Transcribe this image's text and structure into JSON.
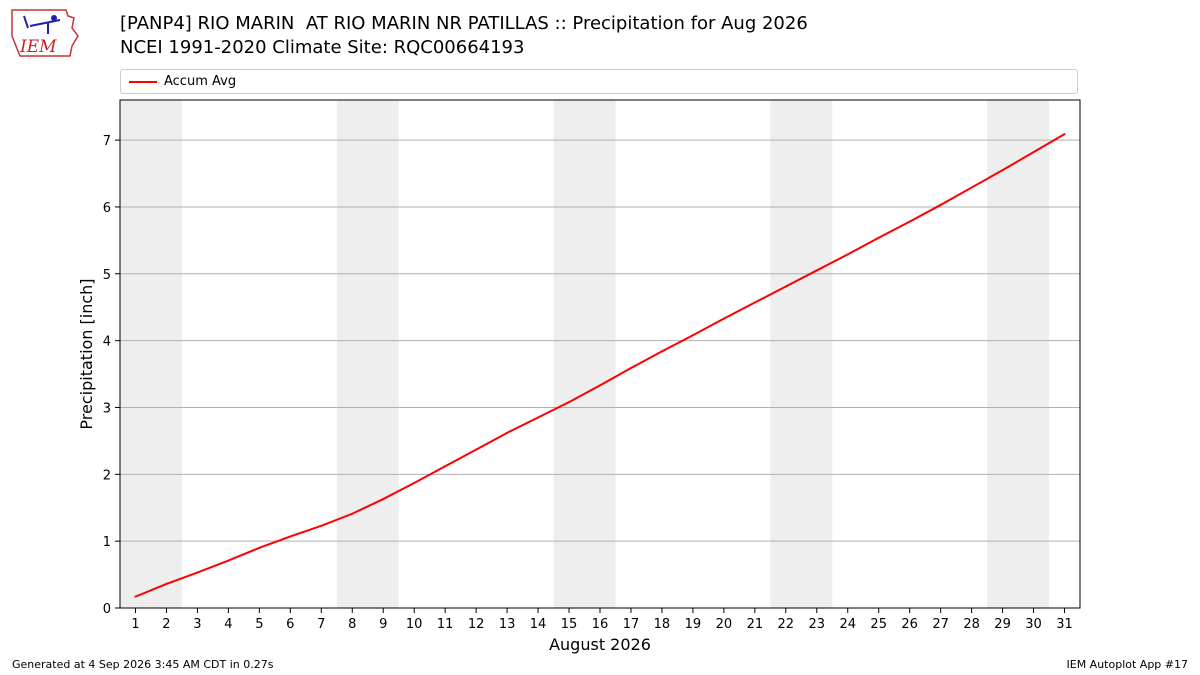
{
  "header": {
    "title_line1": "[PANP4] RIO MARIN  AT RIO MARIN NR PATILLAS :: Precipitation for Aug 2026",
    "title_line2": "NCEI 1991-2020 Climate Site: RQC00664193"
  },
  "logo": {
    "text": "IEM"
  },
  "footer": {
    "generated": "Generated at 4 Sep 2026 3:45 AM CDT in 0.27s",
    "app": "IEM Autoplot App #17"
  },
  "colors": {
    "series": "#ff0000",
    "weekend_band": "#eeeeee",
    "grid": "#b0b0b0"
  },
  "chart_data": {
    "type": "line",
    "xlabel": "August 2026",
    "ylabel": "Precipitation [inch]",
    "ylim": [
      0,
      7.6
    ],
    "xlim": [
      0.5,
      31.5
    ],
    "yticks": [
      0,
      1,
      2,
      3,
      4,
      5,
      6,
      7
    ],
    "x": [
      1,
      2,
      3,
      4,
      5,
      6,
      7,
      8,
      9,
      10,
      11,
      12,
      13,
      14,
      15,
      16,
      17,
      18,
      19,
      20,
      21,
      22,
      23,
      24,
      25,
      26,
      27,
      28,
      29,
      30,
      31
    ],
    "shaded_ranges": [
      [
        0.5,
        2.5
      ],
      [
        7.5,
        9.5
      ],
      [
        14.5,
        16.5
      ],
      [
        21.5,
        23.5
      ],
      [
        28.5,
        30.5
      ]
    ],
    "grid": "horizontal",
    "legend": "top",
    "series": [
      {
        "name": "Accum Avg",
        "color": "#ff0000",
        "values": [
          0.17,
          0.36,
          0.53,
          0.71,
          0.9,
          1.07,
          1.23,
          1.41,
          1.63,
          1.87,
          2.12,
          2.37,
          2.62,
          2.85,
          3.08,
          3.33,
          3.59,
          3.84,
          4.08,
          4.33,
          4.57,
          4.81,
          5.05,
          5.29,
          5.54,
          5.78,
          6.03,
          6.29,
          6.55,
          6.82,
          7.09
        ]
      }
    ]
  }
}
